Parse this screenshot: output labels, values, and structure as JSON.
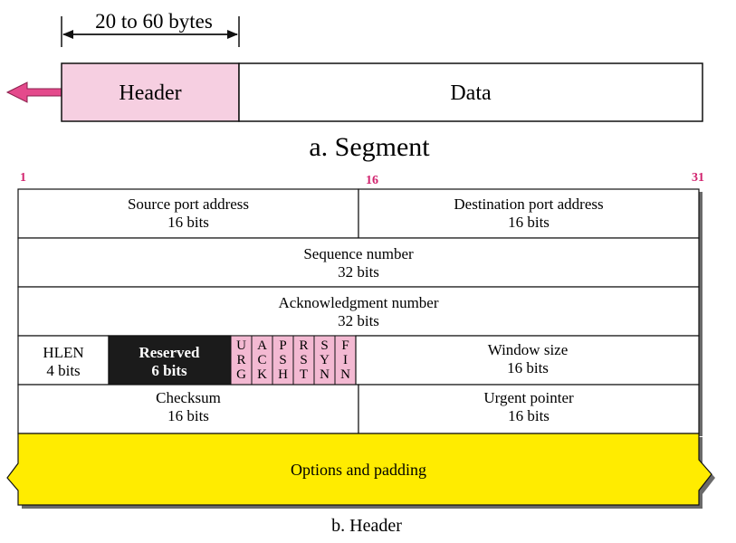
{
  "segment": {
    "size_label": "20 to 60 bytes",
    "header_label": "Header",
    "data_label": "Data",
    "caption": "a. Segment"
  },
  "header": {
    "bit_markers": [
      "1",
      "16",
      "31"
    ],
    "fields": {
      "source_port": {
        "name": "Source port address",
        "bits": "16 bits"
      },
      "destination_port": {
        "name": "Destination port address",
        "bits": "16 bits"
      },
      "sequence": {
        "name": "Sequence number",
        "bits": "32 bits"
      },
      "acknowledgment": {
        "name": "Acknowledgment number",
        "bits": "32 bits"
      },
      "hlen": {
        "name": "HLEN",
        "bits": "4 bits"
      },
      "reserved": {
        "name": "Reserved",
        "bits": "6 bits"
      },
      "flags": [
        {
          "letters": [
            "U",
            "R",
            "G"
          ]
        },
        {
          "letters": [
            "A",
            "C",
            "K"
          ]
        },
        {
          "letters": [
            "P",
            "S",
            "H"
          ]
        },
        {
          "letters": [
            "R",
            "S",
            "T"
          ]
        },
        {
          "letters": [
            "S",
            "Y",
            "N"
          ]
        },
        {
          "letters": [
            "F",
            "I",
            "N"
          ]
        }
      ],
      "window": {
        "name": "Window size",
        "bits": "16 bits"
      },
      "checksum": {
        "name": "Checksum",
        "bits": "16 bits"
      },
      "urgent": {
        "name": "Urgent pointer",
        "bits": "16 bits"
      },
      "options": {
        "name": "Options and padding"
      }
    },
    "caption": "b. Header"
  },
  "colors": {
    "header_fill": "#f6cfe1",
    "flag_fill": "#f3b9d2",
    "reserved_fill": "#1b1b1b",
    "options_fill": "#ffec00",
    "arrow_fill": "#e44a8c",
    "bit_marker": "#d1236e"
  }
}
